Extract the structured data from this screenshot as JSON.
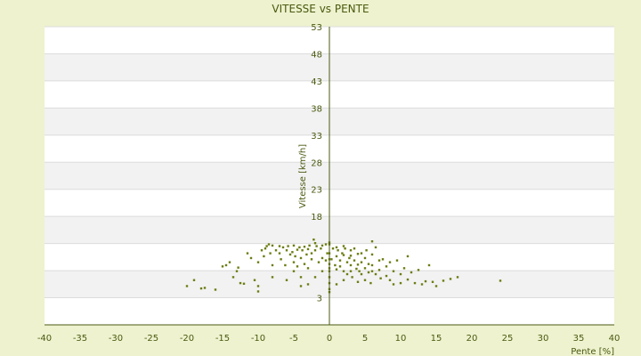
{
  "chart_data": {
    "type": "scatter",
    "title": "VITESSE vs PENTE",
    "xlabel": "Pente [%]",
    "ylabel": "Vitesse [km/h]",
    "xlim": [
      -40,
      40
    ],
    "ylim": [
      3,
      53
    ],
    "xticks": [
      "-40",
      "-35",
      "-30",
      "-25",
      "-20",
      "-15",
      "-10",
      "-5",
      "0",
      "5",
      "10",
      "15",
      "20",
      "25",
      "30",
      "35",
      "40"
    ],
    "yticks": [
      "53",
      "48",
      "43",
      "38",
      "33",
      "28",
      "23",
      "18",
      "",
      "",
      "3"
    ],
    "grid": "horizontal bands",
    "legend": "none",
    "colors": {
      "background": "#eef2cf",
      "band_light": "#ffffff",
      "band_dark": "#f2f2f2",
      "gridline": "#dcdcdc",
      "axis": "#4a5a10",
      "marker": "#6b7d12",
      "text": "#4a5a10"
    },
    "series": [
      {
        "points": [
          [
            -20,
            9.5
          ],
          [
            -19,
            10.5
          ],
          [
            -18,
            9.1
          ],
          [
            -17.5,
            9.2
          ],
          [
            -16,
            8.9
          ],
          [
            -15,
            12.8
          ],
          [
            -14.5,
            13
          ],
          [
            -14,
            13.5
          ],
          [
            -13.5,
            11
          ],
          [
            -13,
            12
          ],
          [
            -12.8,
            12.6
          ],
          [
            -12.5,
            10
          ],
          [
            -12,
            9.9
          ],
          [
            -11.5,
            15
          ],
          [
            -11,
            14.2
          ],
          [
            -10.5,
            10.5
          ],
          [
            -10,
            13.5
          ],
          [
            -10,
            9.5
          ],
          [
            -10,
            8.6
          ],
          [
            -9.5,
            15.5
          ],
          [
            -9.2,
            14.5
          ],
          [
            -9,
            15.8
          ],
          [
            -8.8,
            16.2
          ],
          [
            -8.5,
            16.5
          ],
          [
            -8.3,
            15
          ],
          [
            -8,
            13
          ],
          [
            -8,
            16.3
          ],
          [
            -8,
            11
          ],
          [
            -7.5,
            15.5
          ],
          [
            -7,
            16.2
          ],
          [
            -7,
            15
          ],
          [
            -6.8,
            14
          ],
          [
            -6.5,
            16
          ],
          [
            -6.2,
            13
          ],
          [
            -6,
            15.5
          ],
          [
            -6,
            10.5
          ],
          [
            -5.8,
            16.2
          ],
          [
            -5.5,
            14.8
          ],
          [
            -5.2,
            15.2
          ],
          [
            -5,
            16.3
          ],
          [
            -5,
            13.5
          ],
          [
            -5,
            12
          ],
          [
            -4.8,
            14.5
          ],
          [
            -4.5,
            15.6
          ],
          [
            -4.5,
            12.8
          ],
          [
            -4.2,
            16
          ],
          [
            -4,
            14.2
          ],
          [
            -4,
            11
          ],
          [
            -4,
            9.5
          ],
          [
            -3.8,
            15.5
          ],
          [
            -3.5,
            16.1
          ],
          [
            -3.5,
            13.2
          ],
          [
            -3.2,
            14.8
          ],
          [
            -3,
            15.7
          ],
          [
            -3,
            12.5
          ],
          [
            -3,
            9.8
          ],
          [
            -2.8,
            16.3
          ],
          [
            -2.5,
            15
          ],
          [
            -2.5,
            14
          ],
          [
            -2.2,
            17.3
          ],
          [
            -2,
            16.7
          ],
          [
            -2,
            15.5
          ],
          [
            -2,
            11
          ],
          [
            -1.8,
            16.2
          ],
          [
            -1.5,
            13.5
          ],
          [
            -1.2,
            15.8
          ],
          [
            -1,
            16.3
          ],
          [
            -1,
            12
          ],
          [
            -1,
            14.2
          ],
          [
            -0.5,
            16.5
          ],
          [
            -0.5,
            13.8
          ],
          [
            -0.3,
            15
          ],
          [
            0,
            16.5
          ],
          [
            0,
            15
          ],
          [
            0,
            14
          ],
          [
            0,
            12.5
          ],
          [
            0,
            11
          ],
          [
            0,
            10
          ],
          [
            0,
            9
          ],
          [
            0,
            8.5
          ],
          [
            0,
            16.8
          ],
          [
            0,
            13.2
          ],
          [
            0,
            12
          ],
          [
            0.3,
            14
          ],
          [
            0.5,
            15.8
          ],
          [
            0.8,
            13
          ],
          [
            1,
            16
          ],
          [
            1,
            14.5
          ],
          [
            1,
            12.3
          ],
          [
            1,
            9.8
          ],
          [
            1.2,
            15.5
          ],
          [
            1.5,
            12.8
          ],
          [
            1.5,
            13.8
          ],
          [
            1.8,
            15
          ],
          [
            2,
            16.2
          ],
          [
            2,
            14.7
          ],
          [
            2,
            12
          ],
          [
            2,
            10.5
          ],
          [
            2.2,
            15.8
          ],
          [
            2.5,
            13.5
          ],
          [
            2.5,
            11.5
          ],
          [
            2.8,
            14.2
          ],
          [
            3,
            15.5
          ],
          [
            3,
            13
          ],
          [
            3,
            14.6
          ],
          [
            3,
            12
          ],
          [
            3.2,
            11
          ],
          [
            3.5,
            15.8
          ],
          [
            3.5,
            13.8
          ],
          [
            3.8,
            12.4
          ],
          [
            4,
            14.9
          ],
          [
            4,
            13.1
          ],
          [
            4,
            10.2
          ],
          [
            4.2,
            12
          ],
          [
            4.5,
            15
          ],
          [
            4.5,
            13.5
          ],
          [
            4.5,
            11.5
          ],
          [
            5,
            14.2
          ],
          [
            5,
            12.5
          ],
          [
            5,
            10.5
          ],
          [
            5.2,
            15.5
          ],
          [
            5.5,
            13.2
          ],
          [
            5.5,
            11.8
          ],
          [
            5.8,
            10
          ],
          [
            6,
            14.8
          ],
          [
            6,
            13
          ],
          [
            6,
            12
          ],
          [
            6,
            17
          ],
          [
            6.5,
            16
          ],
          [
            6.5,
            11.5
          ],
          [
            7,
            13.8
          ],
          [
            7,
            12.2
          ],
          [
            7.2,
            10.8
          ],
          [
            7.5,
            14
          ],
          [
            8,
            12.8
          ],
          [
            8,
            11.2
          ],
          [
            8.5,
            13.5
          ],
          [
            8.5,
            10.5
          ],
          [
            9,
            12
          ],
          [
            9,
            9.8
          ],
          [
            9.5,
            13.8
          ],
          [
            10,
            11.5
          ],
          [
            10,
            10
          ],
          [
            10.5,
            12.5
          ],
          [
            11,
            10.6
          ],
          [
            11,
            14.5
          ],
          [
            11.5,
            11.8
          ],
          [
            12,
            10
          ],
          [
            12.5,
            12.2
          ],
          [
            13,
            9.8
          ],
          [
            13.5,
            10.3
          ],
          [
            14,
            13
          ],
          [
            14.5,
            10.2
          ],
          [
            15,
            9.5
          ],
          [
            16,
            10.4
          ],
          [
            17,
            10.7
          ],
          [
            18,
            11
          ],
          [
            24,
            10.4
          ]
        ]
      }
    ]
  }
}
